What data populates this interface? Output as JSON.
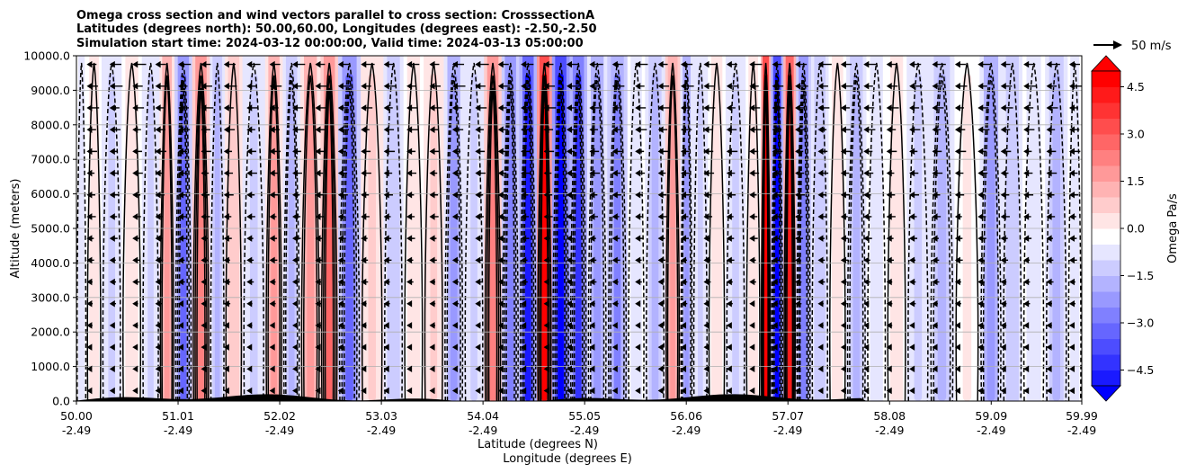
{
  "chart_data": {
    "type": "heatmap",
    "title_lines": [
      "Omega cross section and wind vectors parallel to cross section: CrosssectionA",
      "Latitudes (degrees north): 50.00,60.00, Longitudes (degrees east): -2.50,-2.50",
      "Simulation start time: 2024-03-12 00:00:00, Valid time: 2024-03-13 05:00:00"
    ],
    "ylabel": "Altitude (meters)",
    "xlabel_lines": [
      "Latitude (degrees N)",
      "Longitude (degrees E)"
    ],
    "ylim": [
      0,
      10000
    ],
    "yticks": [
      "0.0",
      "1000.0",
      "2000.0",
      "3000.0",
      "4000.0",
      "5000.0",
      "6000.0",
      "7000.0",
      "8000.0",
      "9000.0",
      "10000.0"
    ],
    "xlim": [
      50.0,
      59.99
    ],
    "xticks": [
      {
        "lat": "50.00",
        "lon": "-2.49",
        "v": 50.0
      },
      {
        "lat": "51.01",
        "lon": "-2.49",
        "v": 51.01
      },
      {
        "lat": "52.02",
        "lon": "-2.49",
        "v": 52.02
      },
      {
        "lat": "53.03",
        "lon": "-2.49",
        "v": 53.03
      },
      {
        "lat": "54.04",
        "lon": "-2.49",
        "v": 54.04
      },
      {
        "lat": "55.05",
        "lon": "-2.49",
        "v": 55.05
      },
      {
        "lat": "56.06",
        "lon": "-2.49",
        "v": 56.06
      },
      {
        "lat": "57.07",
        "lon": "-2.49",
        "v": 57.07
      },
      {
        "lat": "58.08",
        "lon": "-2.49",
        "v": 58.08
      },
      {
        "lat": "59.09",
        "lon": "-2.49",
        "v": 59.09
      },
      {
        "lat": "59.99",
        "lon": "-2.49",
        "v": 59.99
      }
    ],
    "grid": true,
    "colorbar": {
      "label": "Omega Pa/s",
      "range": [
        -5.0,
        5.0
      ],
      "ticks": [
        "-4.5",
        "-3.0",
        "-1.5",
        "0.0",
        "1.5",
        "3.0",
        "4.5"
      ],
      "extend": "both",
      "colormap": "bwr"
    },
    "quiver_key": {
      "label": "50 m/s"
    },
    "omega_bands": [
      {
        "lat": 50.05,
        "omega": -0.6
      },
      {
        "lat": 50.15,
        "omega": 0.4
      },
      {
        "lat": 50.35,
        "omega": -0.8
      },
      {
        "lat": 50.55,
        "omega": 0.7
      },
      {
        "lat": 50.75,
        "omega": -0.9
      },
      {
        "lat": 50.9,
        "omega": 1.8
      },
      {
        "lat": 51.05,
        "omega": -3.0
      },
      {
        "lat": 51.25,
        "omega": 2.6
      },
      {
        "lat": 51.4,
        "omega": -1.4
      },
      {
        "lat": 51.55,
        "omega": 1.2
      },
      {
        "lat": 51.75,
        "omega": -1.0
      },
      {
        "lat": 52.0,
        "omega": 2.0
      },
      {
        "lat": 52.1,
        "omega": -1.6
      },
      {
        "lat": 52.35,
        "omega": 1.8
      },
      {
        "lat": 52.5,
        "omega": 2.8
      },
      {
        "lat": 52.7,
        "omega": -3.2
      },
      {
        "lat": 52.95,
        "omega": 0.8
      },
      {
        "lat": 53.15,
        "omega": -1.2
      },
      {
        "lat": 53.35,
        "omega": 0.6
      },
      {
        "lat": 53.55,
        "omega": 1.0
      },
      {
        "lat": 53.75,
        "omega": -1.8
      },
      {
        "lat": 53.95,
        "omega": -0.8
      },
      {
        "lat": 54.15,
        "omega": 2.6
      },
      {
        "lat": 54.3,
        "omega": -2.6
      },
      {
        "lat": 54.5,
        "omega": -4.6
      },
      {
        "lat": 54.65,
        "omega": 5.2
      },
      {
        "lat": 54.8,
        "omega": -5.2
      },
      {
        "lat": 55.0,
        "omega": -3.8
      },
      {
        "lat": 55.15,
        "omega": -2.0
      },
      {
        "lat": 55.4,
        "omega": -2.4
      },
      {
        "lat": 55.55,
        "omega": -0.6
      },
      {
        "lat": 55.75,
        "omega": -1.4
      },
      {
        "lat": 55.95,
        "omega": 2.2
      },
      {
        "lat": 56.05,
        "omega": -1.8
      },
      {
        "lat": 56.2,
        "omega": -0.8
      },
      {
        "lat": 56.35,
        "omega": 0.6
      },
      {
        "lat": 56.55,
        "omega": -1.0
      },
      {
        "lat": 56.75,
        "omega": 0.4
      },
      {
        "lat": 56.85,
        "omega": 4.8
      },
      {
        "lat": 56.95,
        "omega": -5.0
      },
      {
        "lat": 57.1,
        "omega": 4.4
      },
      {
        "lat": 57.2,
        "omega": -2.6
      },
      {
        "lat": 57.4,
        "omega": -1.2
      },
      {
        "lat": 57.55,
        "omega": 0.5
      },
      {
        "lat": 57.75,
        "omega": -1.6
      },
      {
        "lat": 57.95,
        "omega": -0.4
      },
      {
        "lat": 58.15,
        "omega": 0.5
      },
      {
        "lat": 58.35,
        "omega": -1.0
      },
      {
        "lat": 58.6,
        "omega": -1.6
      },
      {
        "lat": 58.85,
        "omega": 0.3
      },
      {
        "lat": 59.1,
        "omega": -1.8
      },
      {
        "lat": 59.3,
        "omega": -1.2
      },
      {
        "lat": 59.5,
        "omega": -0.6
      },
      {
        "lat": 59.75,
        "omega": -1.4
      },
      {
        "lat": 59.95,
        "omega": -0.4
      }
    ]
  }
}
